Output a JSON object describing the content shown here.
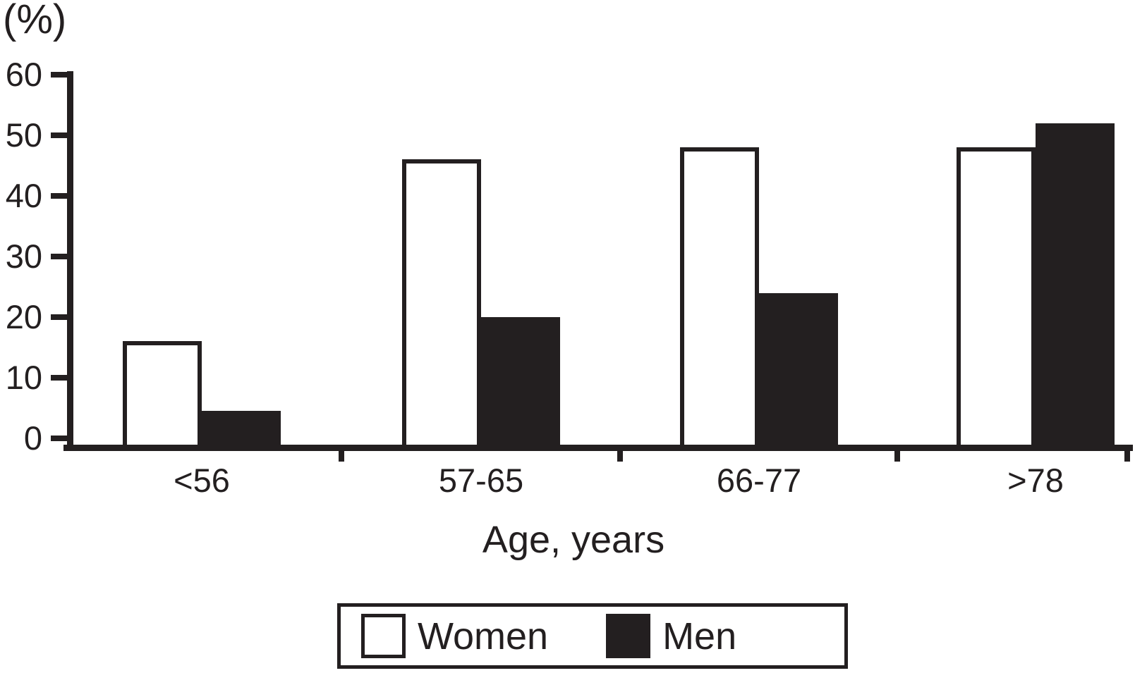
{
  "accent_color": "#231f20",
  "chart_data": {
    "type": "bar",
    "title": "",
    "ylabel": "(%)",
    "xlabel": "Age, years",
    "categories": [
      "<56",
      "57-65",
      "66-77",
      ">78"
    ],
    "series": [
      {
        "name": "Women",
        "fill": "#ffffff",
        "outline": "#231f20",
        "values": [
          16,
          46,
          48,
          48
        ]
      },
      {
        "name": "Men",
        "fill": "#231f20",
        "outline": "#231f20",
        "values": [
          4.5,
          20,
          24,
          52
        ]
      }
    ],
    "ylim": [
      0,
      60
    ],
    "yticks": [
      0,
      10,
      20,
      30,
      40,
      50,
      60
    ],
    "grid": false,
    "legend_position": "bottom"
  }
}
